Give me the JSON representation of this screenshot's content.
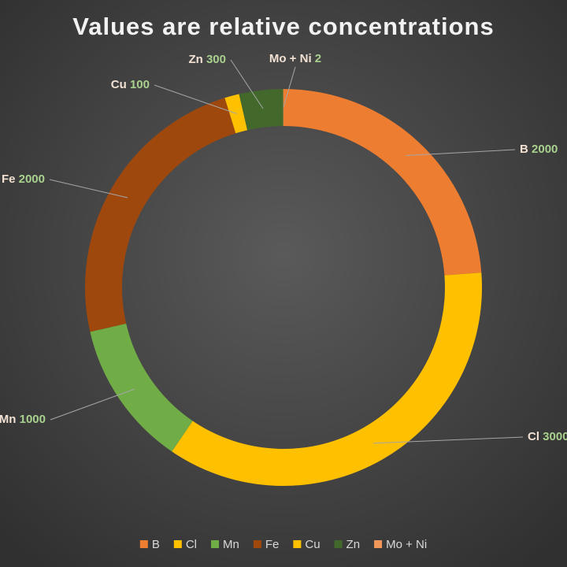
{
  "chart_data": {
    "type": "donut",
    "title": "Values are relative concentrations",
    "categories": [
      "B",
      "Cl",
      "Mn",
      "Fe",
      "Cu",
      "Zn",
      "Mo + Ni"
    ],
    "values": [
      2000,
      3000,
      1000,
      2000,
      100,
      300,
      2
    ],
    "colors": [
      "#ed7d31",
      "#ffc000",
      "#70ad47",
      "#9e480e",
      "#ffc000",
      "#43682b",
      "#f1975a"
    ],
    "legend": "bottom"
  }
}
